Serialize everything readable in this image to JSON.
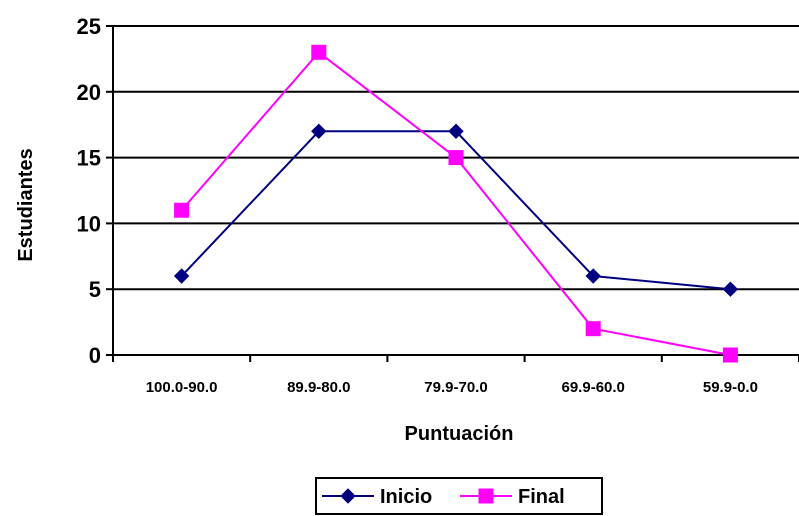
{
  "chart_data": {
    "type": "line",
    "categories": [
      "100.0-90.0",
      "89.9-80.0",
      "79.9-70.0",
      "69.9-60.0",
      "59.9-0.0"
    ],
    "series": [
      {
        "name": "Inicio",
        "values": [
          6,
          17,
          17,
          6,
          5
        ],
        "color": "#000080",
        "marker": "diamond"
      },
      {
        "name": "Final",
        "values": [
          11,
          23,
          15,
          2,
          0
        ],
        "color": "#FF00FF",
        "marker": "square"
      }
    ],
    "xlabel": "Puntuación",
    "ylabel": "Estudiantes",
    "ylim": [
      0,
      25
    ],
    "yticks": [
      "0",
      "5",
      "10",
      "15",
      "20",
      "25"
    ],
    "grid": "horizontal",
    "legend_position": "bottom"
  }
}
